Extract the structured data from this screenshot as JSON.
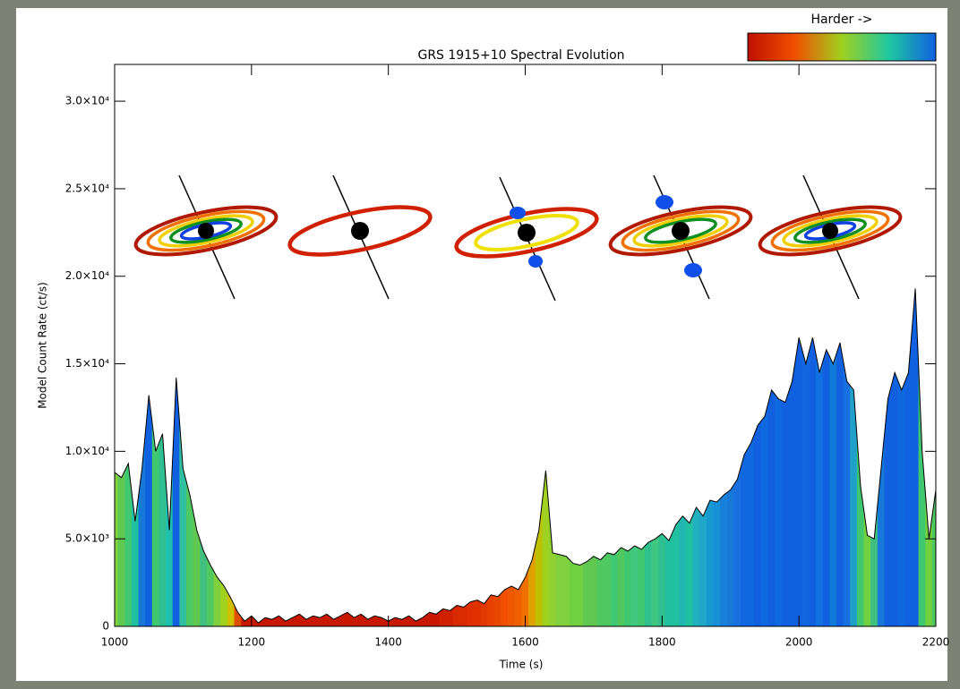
{
  "chart_data": {
    "type": "area",
    "title": "GRS 1915+10 Spectral Evolution",
    "xlabel": "Time (s)",
    "ylabel": "Model Count Rate (ct/s)",
    "colorbar_label": "Harder ->",
    "colorbar_colors": [
      "#c01000",
      "#f05000",
      "#a0d020",
      "#20c8a0",
      "#1060e0"
    ],
    "xlim": [
      1000,
      2200
    ],
    "ylim": [
      0,
      32100
    ],
    "xticks": [
      1000,
      1200,
      1400,
      1600,
      1800,
      2000,
      2200
    ],
    "yticks": [
      0,
      {
        "value": 5000,
        "label": "5.0×10³"
      },
      {
        "value": 10000,
        "label": "1.0×10⁴"
      },
      {
        "value": 15000,
        "label": "1.5×10⁴"
      },
      {
        "value": 20000,
        "label": "2.0×10⁴"
      },
      {
        "value": 25000,
        "label": "2.5×10⁴"
      },
      {
        "value": 30000,
        "label": "3.0×10⁴"
      }
    ],
    "outline_color": "#000000",
    "x": [
      1000,
      1010,
      1020,
      1030,
      1040,
      1050,
      1060,
      1070,
      1080,
      1090,
      1100,
      1110,
      1120,
      1130,
      1140,
      1150,
      1160,
      1170,
      1180,
      1190,
      1200,
      1210,
      1220,
      1230,
      1240,
      1250,
      1260,
      1270,
      1280,
      1290,
      1300,
      1310,
      1320,
      1330,
      1340,
      1350,
      1360,
      1370,
      1380,
      1390,
      1400,
      1410,
      1420,
      1430,
      1440,
      1450,
      1460,
      1470,
      1480,
      1490,
      1500,
      1510,
      1520,
      1530,
      1540,
      1550,
      1560,
      1570,
      1580,
      1590,
      1600,
      1610,
      1620,
      1630,
      1640,
      1650,
      1660,
      1670,
      1680,
      1690,
      1700,
      1710,
      1720,
      1730,
      1740,
      1750,
      1760,
      1770,
      1780,
      1790,
      1800,
      1810,
      1820,
      1830,
      1840,
      1850,
      1860,
      1870,
      1880,
      1890,
      1900,
      1910,
      1920,
      1930,
      1940,
      1950,
      1960,
      1970,
      1980,
      1990,
      2000,
      2010,
      2020,
      2030,
      2040,
      2050,
      2060,
      2070,
      2080,
      2090,
      2100,
      2110,
      2120,
      2130,
      2140,
      2150,
      2160,
      2170,
      2180,
      2190,
      2200
    ],
    "values": [
      8800,
      8500,
      9300,
      6000,
      9000,
      13200,
      10000,
      11000,
      5500,
      14200,
      9000,
      7500,
      5500,
      4300,
      3500,
      2800,
      2300,
      1600,
      800,
      300,
      600,
      200,
      500,
      400,
      600,
      300,
      500,
      700,
      400,
      600,
      500,
      700,
      400,
      600,
      800,
      500,
      700,
      400,
      600,
      500,
      300,
      500,
      400,
      600,
      300,
      500,
      800,
      700,
      1000,
      900,
      1200,
      1100,
      1400,
      1500,
      1300,
      1800,
      1700,
      2100,
      2300,
      2100,
      2800,
      3800,
      5500,
      8900,
      4200,
      4100,
      4000,
      3600,
      3500,
      3700,
      4000,
      3800,
      4200,
      4100,
      4500,
      4300,
      4600,
      4400,
      4800,
      5000,
      5300,
      4900,
      5800,
      6300,
      5900,
      6800,
      6300,
      7200,
      7100,
      7500,
      7800,
      8400,
      9800,
      10500,
      11500,
      12000,
      13500,
      13000,
      12800,
      14000,
      16500,
      15000,
      16500,
      14500,
      15800,
      15000,
      16200,
      14000,
      13500,
      8000,
      5200,
      5000,
      9000,
      13000,
      14500,
      13500,
      14500,
      19300,
      10000,
      5000,
      7800
    ],
    "colors": [
      "#80d040",
      "#60c850",
      "#40c870",
      "#20c0a0",
      "#1878d8",
      "#1060e0",
      "#40c870",
      "#30c090",
      "#20c0b0",
      "#1060e0",
      "#30c0a0",
      "#50c860",
      "#60c850",
      "#40c080",
      "#50c860",
      "#80d040",
      "#a0d020",
      "#d0c000",
      "#e05000",
      "#c81800",
      "#c81800",
      "#c81800",
      "#c81800",
      "#c81800",
      "#c81800",
      "#c81800",
      "#c81800",
      "#c81800",
      "#c81800",
      "#c81800",
      "#c81800",
      "#c81800",
      "#c81800",
      "#c81800",
      "#c81800",
      "#c81800",
      "#c81800",
      "#c81800",
      "#c81800",
      "#c81800",
      "#c81800",
      "#c81800",
      "#c81800",
      "#c81800",
      "#c81800",
      "#c81800",
      "#c81800",
      "#c81800",
      "#d02000",
      "#d02000",
      "#d82a00",
      "#d82a00",
      "#e03000",
      "#e03000",
      "#e03800",
      "#e84000",
      "#e84800",
      "#f05000",
      "#f05800",
      "#f06000",
      "#f07000",
      "#e0a000",
      "#c0c000",
      "#a0d020",
      "#90d030",
      "#80d040",
      "#80d040",
      "#70d040",
      "#70d040",
      "#60c850",
      "#60c850",
      "#50c860",
      "#50c860",
      "#40c870",
      "#50c860",
      "#40c870",
      "#40c880",
      "#40c870",
      "#30c090",
      "#40c880",
      "#30c090",
      "#20c0a0",
      "#20c0a0",
      "#20b8b0",
      "#20c0a0",
      "#20b0c0",
      "#20a8c8",
      "#1898d0",
      "#1890d8",
      "#1880d8",
      "#1878d8",
      "#1870e0",
      "#1068e0",
      "#1068e0",
      "#1060e0",
      "#1068e0",
      "#1060e0",
      "#1068e0",
      "#1060e0",
      "#1060e0",
      "#1060e0",
      "#1068e0",
      "#1060e0",
      "#1070e0",
      "#1060e0",
      "#1078d8",
      "#1060e0",
      "#1870e0",
      "#20a0c8",
      "#40c870",
      "#70d040",
      "#40c080",
      "#1878d8",
      "#1060e0",
      "#1060e0",
      "#1068e0",
      "#1060e0",
      "#1060e0",
      "#40c870",
      "#70d040",
      "#50c860"
    ]
  }
}
